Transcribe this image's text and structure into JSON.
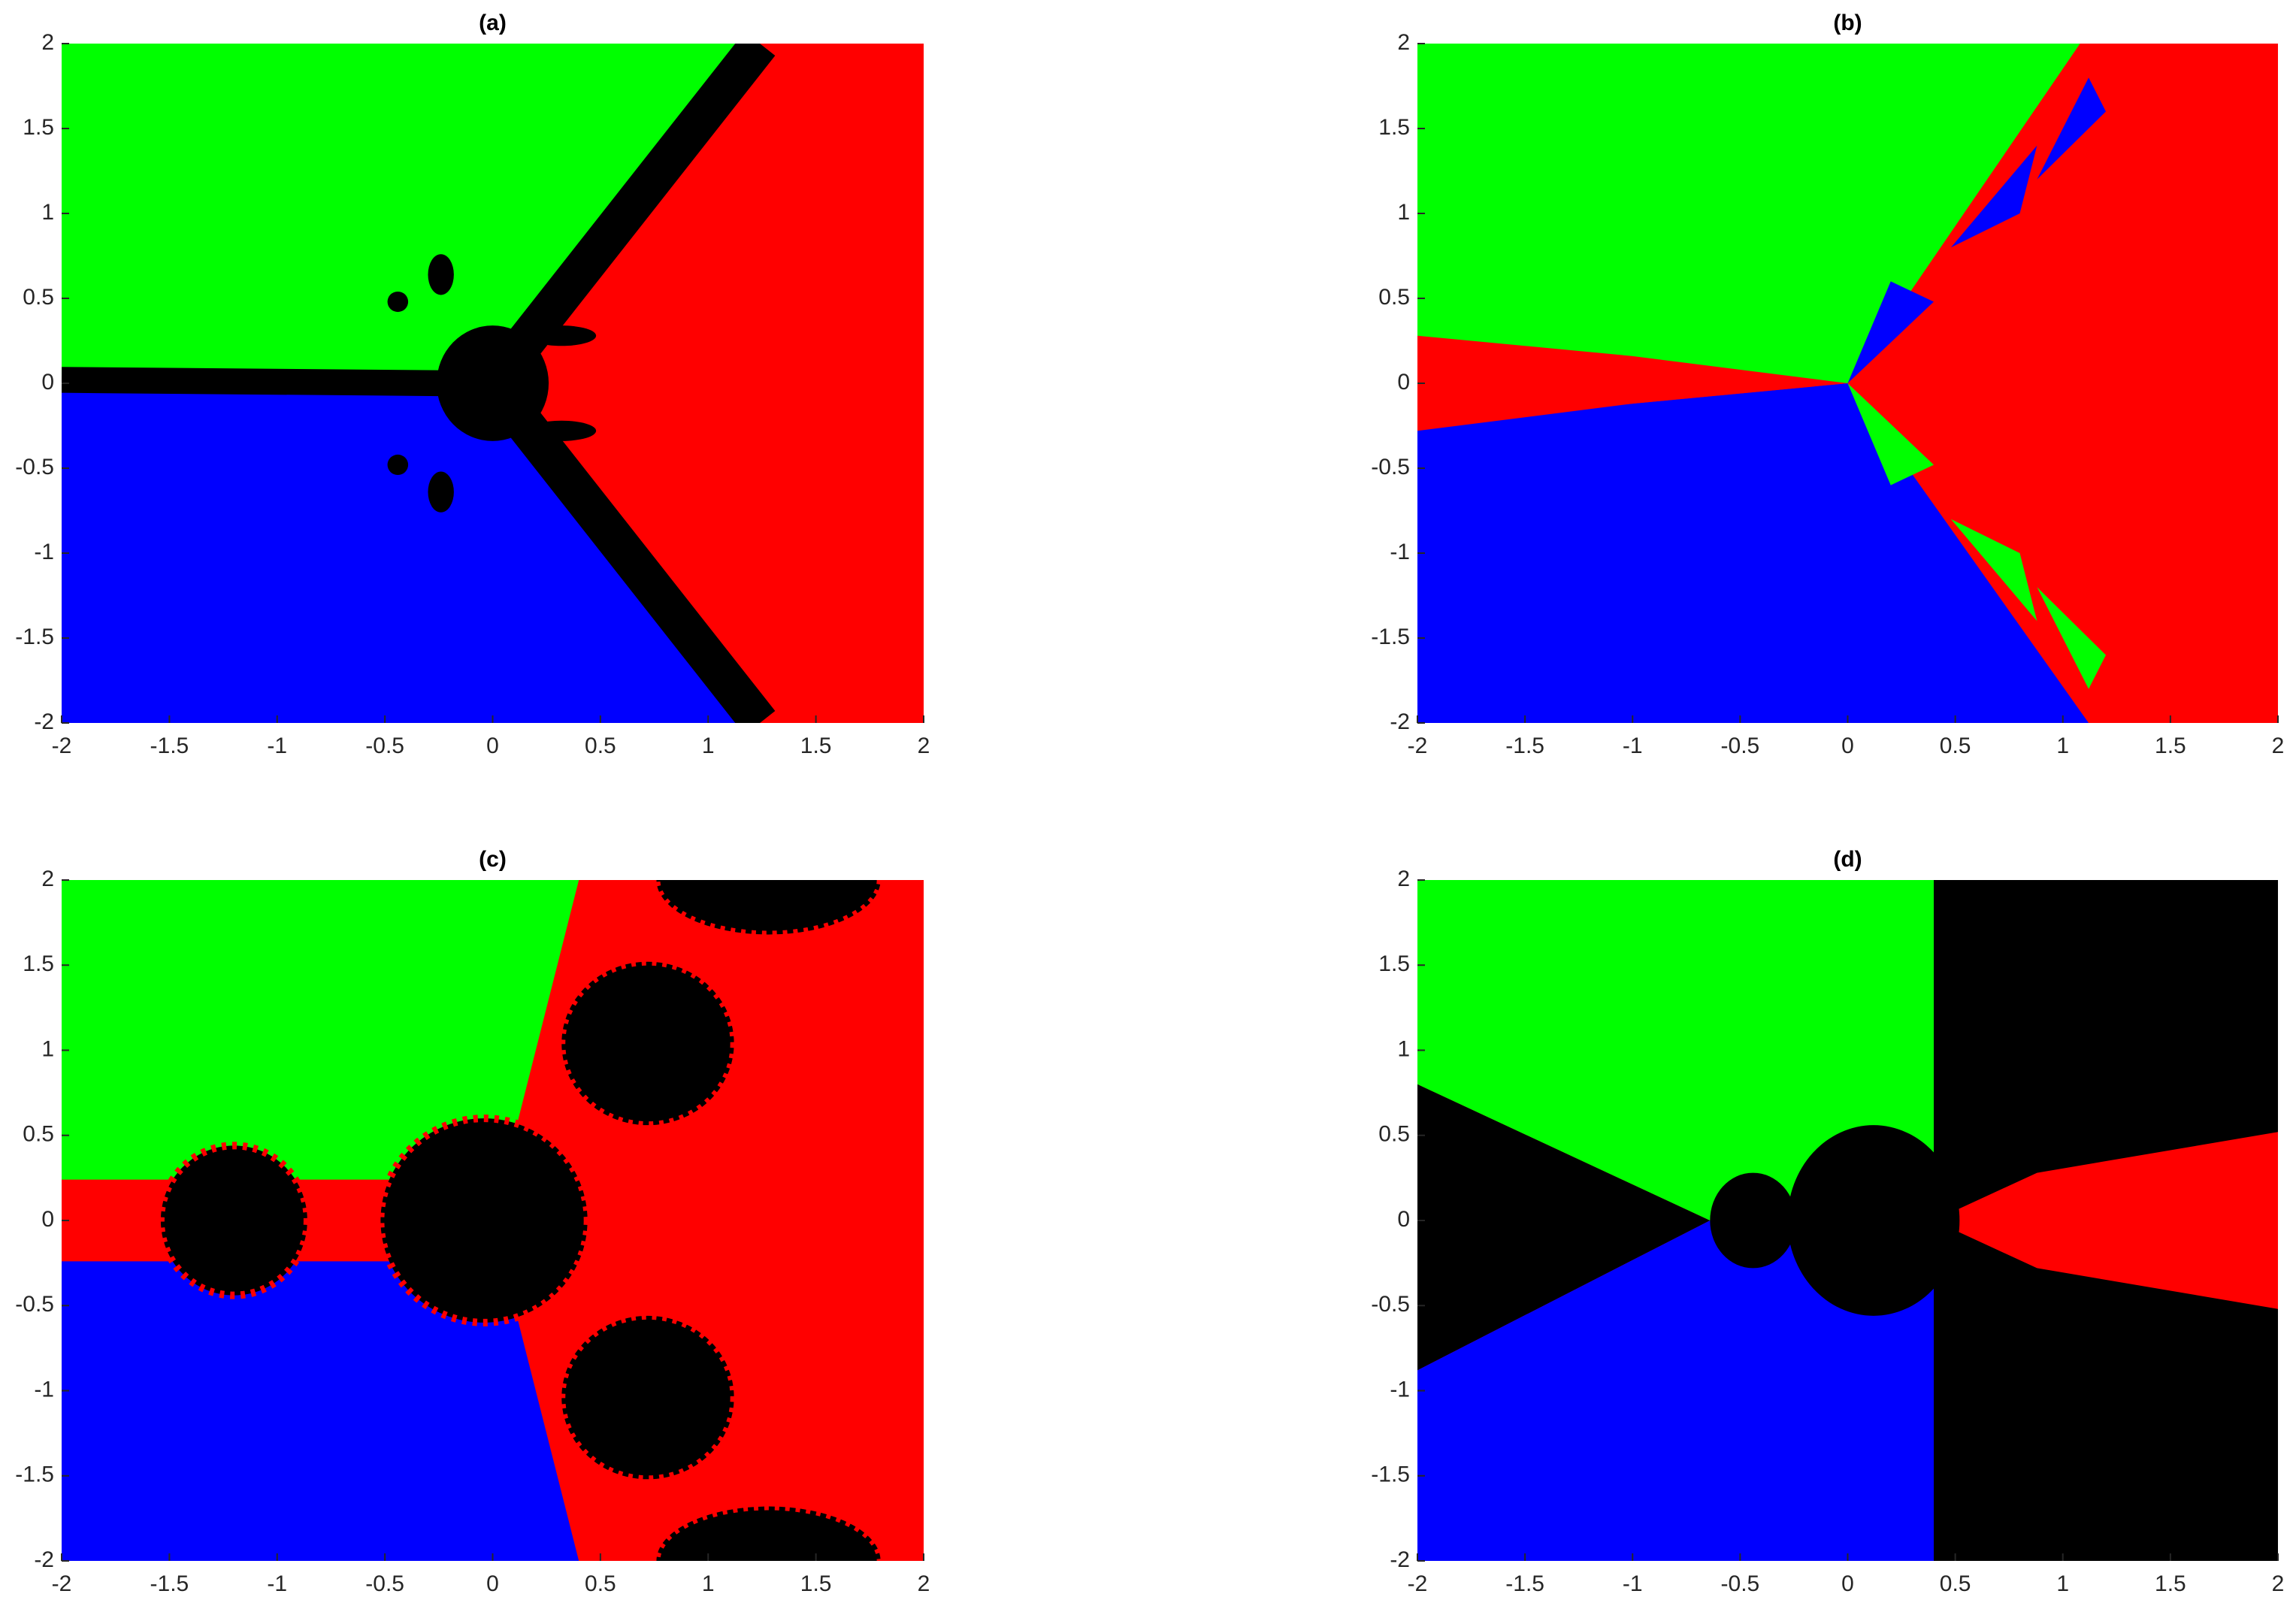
{
  "chart_data": [
    {
      "type": "image",
      "title": "(a)",
      "xlim": [
        -2,
        2
      ],
      "ylim": [
        -2,
        2
      ],
      "xticks": [
        -2,
        -1.5,
        -1,
        -0.5,
        0,
        0.5,
        1,
        1.5,
        2
      ],
      "yticks": [
        -2,
        -1.5,
        -1,
        -0.5,
        0,
        0.5,
        1,
        1.5,
        2
      ]
    },
    {
      "type": "image",
      "title": "(b)",
      "xlim": [
        -2,
        2
      ],
      "ylim": [
        -2,
        2
      ],
      "xticks": [
        -2,
        -1.5,
        -1,
        -0.5,
        0,
        0.5,
        1,
        1.5,
        2
      ],
      "yticks": [
        -2,
        -1.5,
        -1,
        -0.5,
        0,
        0.5,
        1,
        1.5,
        2
      ]
    },
    {
      "type": "image",
      "title": "(c)",
      "xlim": [
        -2,
        2
      ],
      "ylim": [
        -2,
        2
      ],
      "xticks": [
        -2,
        -1.5,
        -1,
        -0.5,
        0,
        0.5,
        1,
        1.5,
        2
      ],
      "yticks": [
        -2,
        -1.5,
        -1,
        -0.5,
        0,
        0.5,
        1,
        1.5,
        2
      ]
    },
    {
      "type": "image",
      "title": "(d)",
      "xlim": [
        -2,
        2
      ],
      "ylim": [
        -2,
        2
      ],
      "xticks": [
        -2,
        -1.5,
        -1,
        -0.5,
        0,
        0.5,
        1,
        1.5,
        2
      ],
      "yticks": [
        -2,
        -1.5,
        -1,
        -0.5,
        0,
        0.5,
        1,
        1.5,
        2
      ]
    }
  ]
}
